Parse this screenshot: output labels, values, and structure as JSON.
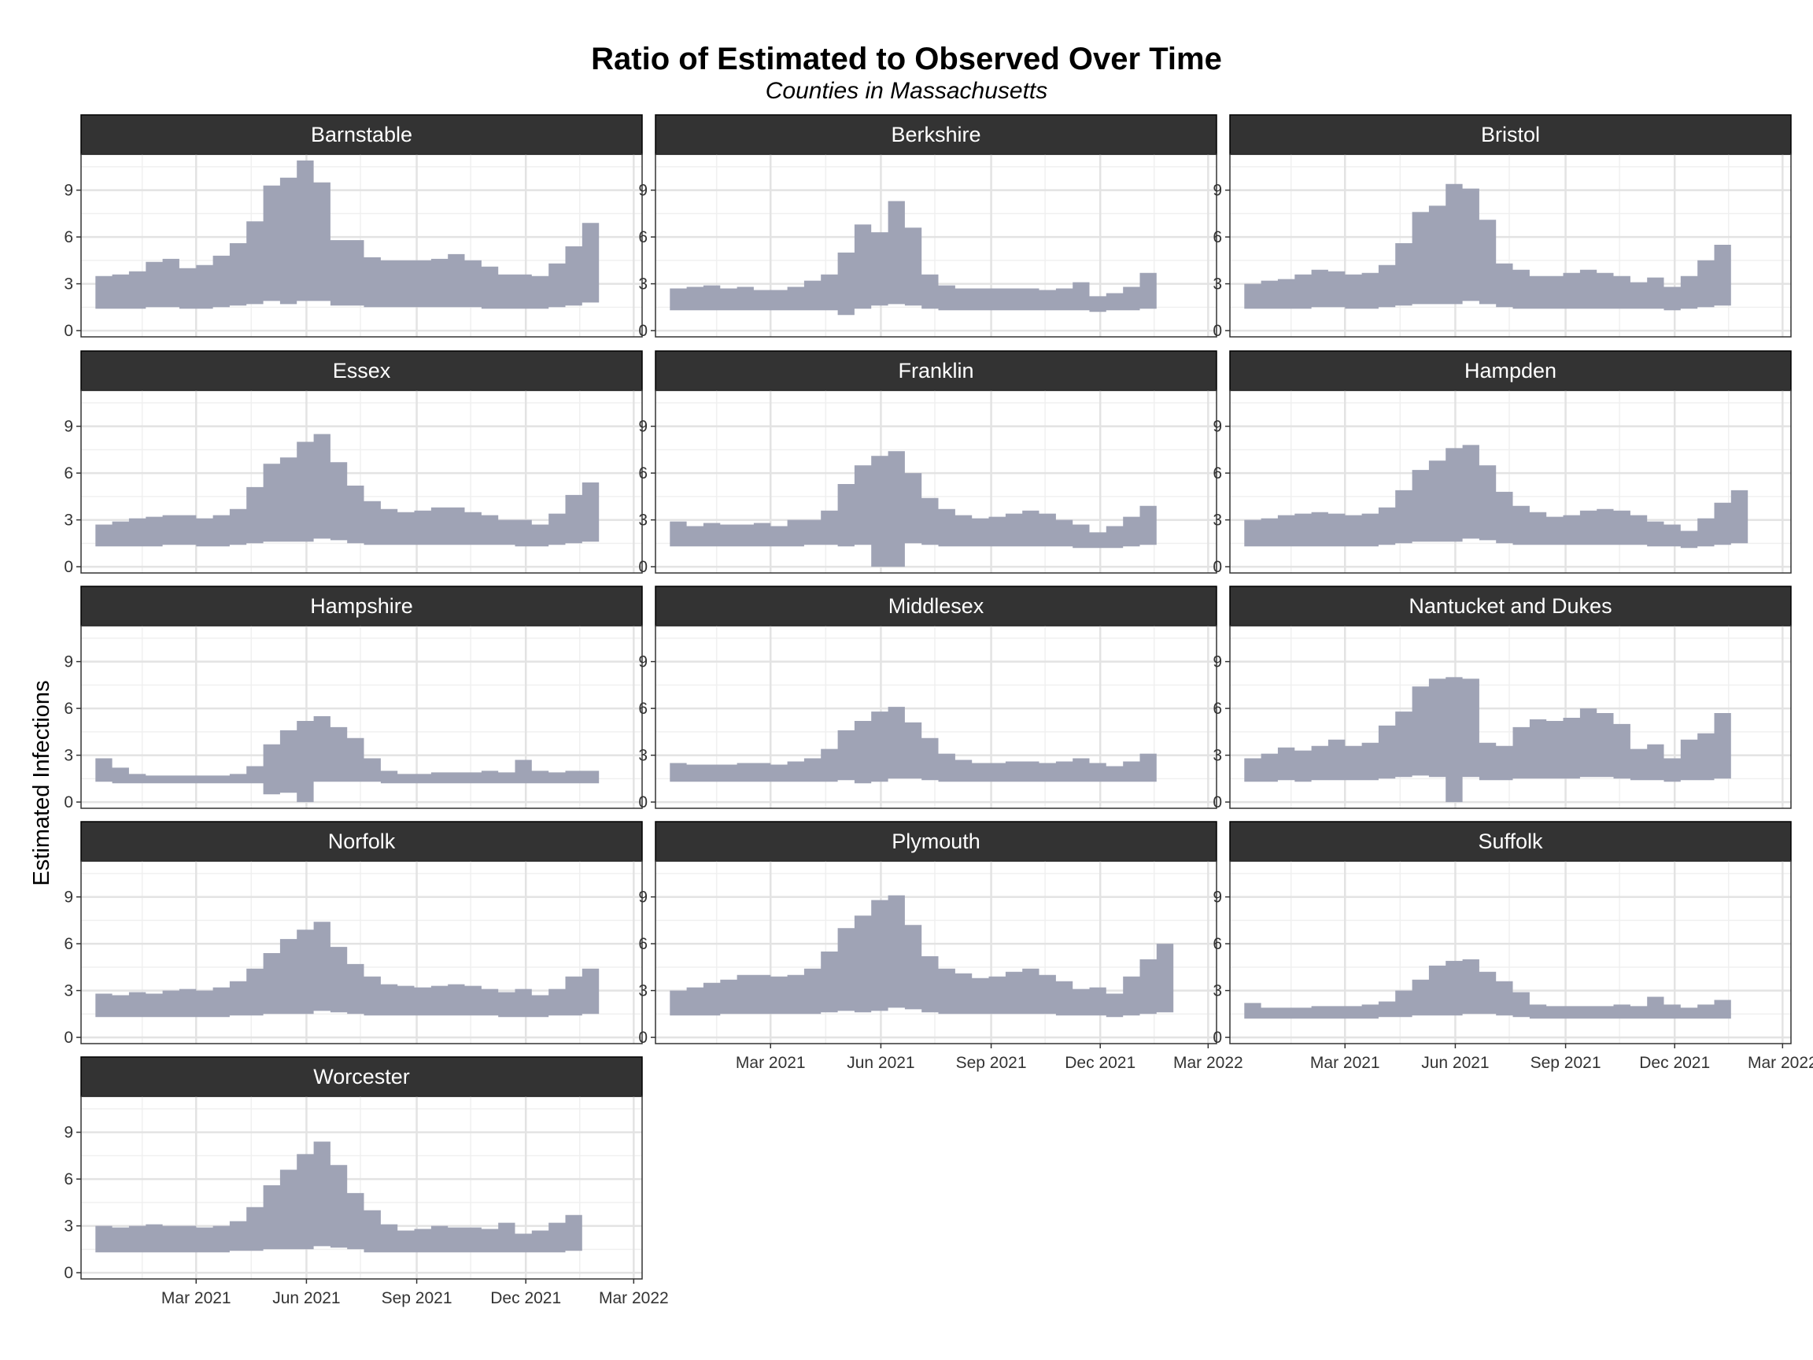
{
  "chart_data": {
    "type": "area",
    "title": "Ratio of Estimated to Observed Over Time",
    "subtitle": "Counties in Massachusetts",
    "xlabel": "",
    "ylabel": "Estimated Infections",
    "x_ticks": [
      "Mar 2021",
      "Jun 2021",
      "Sep 2021",
      "Dec 2021",
      "Mar 2022"
    ],
    "y_ticks": [
      0,
      3,
      6,
      9
    ],
    "ylim": [
      -0.4,
      11.3
    ],
    "xlim": [
      "2020-11-25",
      "2022-03-08"
    ],
    "grid": true,
    "fill_color": "#9fa3b5",
    "strip_color": "#333333",
    "layout": {
      "columns": 3,
      "rows": 5
    },
    "weeks_start": "2020-12-07",
    "week_step_days": 14,
    "panels": [
      {
        "name": "Barnstable",
        "upper": [
          3.5,
          3.6,
          3.8,
          4.4,
          4.6,
          4.0,
          4.2,
          4.8,
          5.6,
          7.0,
          9.3,
          9.8,
          10.9,
          9.5,
          5.8,
          5.8,
          4.7,
          4.5,
          4.5,
          4.5,
          4.6,
          4.9,
          4.5,
          4.1,
          3.6,
          3.6,
          3.5,
          4.3,
          5.4,
          6.9
        ],
        "lower": [
          1.4,
          1.4,
          1.4,
          1.5,
          1.5,
          1.4,
          1.4,
          1.5,
          1.6,
          1.7,
          1.9,
          1.7,
          1.9,
          1.9,
          1.6,
          1.6,
          1.5,
          1.5,
          1.5,
          1.5,
          1.5,
          1.5,
          1.5,
          1.4,
          1.4,
          1.4,
          1.4,
          1.5,
          1.6,
          1.8
        ]
      },
      {
        "name": "Berkshire",
        "upper": [
          2.7,
          2.8,
          2.9,
          2.7,
          2.8,
          2.6,
          2.6,
          2.8,
          3.2,
          3.6,
          5.0,
          6.8,
          6.3,
          8.3,
          6.6,
          3.6,
          2.9,
          2.7,
          2.7,
          2.7,
          2.7,
          2.7,
          2.6,
          2.7,
          3.1,
          2.2,
          2.4,
          2.8,
          3.7
        ],
        "lower": [
          1.3,
          1.3,
          1.3,
          1.3,
          1.3,
          1.3,
          1.3,
          1.3,
          1.3,
          1.3,
          1.0,
          1.4,
          1.6,
          1.7,
          1.6,
          1.4,
          1.3,
          1.3,
          1.3,
          1.3,
          1.3,
          1.3,
          1.3,
          1.3,
          1.3,
          1.2,
          1.3,
          1.3,
          1.4
        ]
      },
      {
        "name": "Bristol",
        "upper": [
          3.0,
          3.2,
          3.3,
          3.6,
          3.9,
          3.8,
          3.6,
          3.7,
          4.2,
          5.6,
          7.6,
          8.0,
          9.4,
          9.1,
          7.1,
          4.3,
          3.9,
          3.5,
          3.5,
          3.7,
          3.9,
          3.7,
          3.5,
          3.1,
          3.4,
          2.8,
          3.5,
          4.5,
          5.5
        ],
        "lower": [
          1.4,
          1.4,
          1.4,
          1.4,
          1.5,
          1.5,
          1.4,
          1.4,
          1.5,
          1.6,
          1.7,
          1.7,
          1.7,
          1.9,
          1.7,
          1.5,
          1.4,
          1.4,
          1.4,
          1.4,
          1.4,
          1.4,
          1.4,
          1.4,
          1.4,
          1.3,
          1.4,
          1.5,
          1.6
        ]
      },
      {
        "name": "Essex",
        "upper": [
          2.7,
          2.9,
          3.1,
          3.2,
          3.3,
          3.3,
          3.1,
          3.3,
          3.7,
          5.1,
          6.6,
          7.0,
          8.0,
          8.5,
          6.7,
          5.2,
          4.2,
          3.7,
          3.5,
          3.6,
          3.8,
          3.8,
          3.5,
          3.3,
          3.0,
          3.0,
          2.7,
          3.4,
          4.6,
          5.4
        ],
        "lower": [
          1.3,
          1.3,
          1.3,
          1.3,
          1.4,
          1.4,
          1.3,
          1.3,
          1.4,
          1.5,
          1.6,
          1.6,
          1.6,
          1.8,
          1.7,
          1.5,
          1.4,
          1.4,
          1.4,
          1.4,
          1.4,
          1.4,
          1.4,
          1.4,
          1.4,
          1.3,
          1.3,
          1.4,
          1.5,
          1.6
        ]
      },
      {
        "name": "Franklin",
        "upper": [
          2.9,
          2.6,
          2.8,
          2.7,
          2.7,
          2.8,
          2.6,
          3.0,
          3.0,
          3.6,
          5.3,
          6.5,
          7.1,
          7.4,
          6.0,
          4.4,
          3.7,
          3.3,
          3.1,
          3.2,
          3.4,
          3.6,
          3.4,
          3.0,
          2.7,
          2.2,
          2.6,
          3.2,
          3.9
        ],
        "lower": [
          1.3,
          1.3,
          1.3,
          1.3,
          1.3,
          1.3,
          1.3,
          1.3,
          1.4,
          1.4,
          1.3,
          1.4,
          0.0,
          0.0,
          1.5,
          1.4,
          1.3,
          1.3,
          1.3,
          1.3,
          1.3,
          1.3,
          1.3,
          1.3,
          1.2,
          1.2,
          1.2,
          1.3,
          1.4
        ]
      },
      {
        "name": "Hampden",
        "upper": [
          3.0,
          3.1,
          3.3,
          3.4,
          3.5,
          3.4,
          3.3,
          3.4,
          3.8,
          4.9,
          6.2,
          6.8,
          7.6,
          7.8,
          6.5,
          4.8,
          3.9,
          3.5,
          3.2,
          3.3,
          3.6,
          3.7,
          3.6,
          3.3,
          2.9,
          2.7,
          2.3,
          3.1,
          4.1,
          4.9
        ],
        "lower": [
          1.3,
          1.3,
          1.3,
          1.3,
          1.3,
          1.3,
          1.3,
          1.3,
          1.4,
          1.5,
          1.6,
          1.6,
          1.6,
          1.8,
          1.7,
          1.5,
          1.4,
          1.4,
          1.4,
          1.4,
          1.4,
          1.4,
          1.4,
          1.4,
          1.3,
          1.3,
          1.2,
          1.3,
          1.4,
          1.5
        ]
      },
      {
        "name": "Hampshire",
        "upper": [
          2.8,
          2.2,
          1.8,
          1.7,
          1.7,
          1.7,
          1.7,
          1.7,
          1.8,
          2.3,
          3.7,
          4.6,
          5.2,
          5.5,
          4.8,
          4.1,
          2.8,
          2.0,
          1.8,
          1.8,
          1.9,
          1.9,
          1.9,
          2.0,
          1.9,
          2.7,
          2.0,
          1.9,
          2.0,
          2.0
        ],
        "lower": [
          1.3,
          1.2,
          1.2,
          1.2,
          1.2,
          1.2,
          1.2,
          1.2,
          1.2,
          1.2,
          0.5,
          0.6,
          0.0,
          1.3,
          1.3,
          1.3,
          1.3,
          1.2,
          1.2,
          1.2,
          1.2,
          1.2,
          1.2,
          1.2,
          1.2,
          1.2,
          1.2,
          1.2,
          1.2,
          1.2
        ]
      },
      {
        "name": "Middlesex",
        "upper": [
          2.5,
          2.4,
          2.4,
          2.4,
          2.5,
          2.5,
          2.4,
          2.6,
          2.8,
          3.4,
          4.6,
          5.2,
          5.8,
          6.1,
          5.1,
          4.1,
          3.1,
          2.7,
          2.5,
          2.5,
          2.6,
          2.6,
          2.5,
          2.6,
          2.8,
          2.5,
          2.3,
          2.6,
          3.1
        ],
        "lower": [
          1.3,
          1.3,
          1.3,
          1.3,
          1.3,
          1.3,
          1.3,
          1.3,
          1.3,
          1.3,
          1.4,
          1.2,
          1.3,
          1.5,
          1.5,
          1.4,
          1.3,
          1.3,
          1.3,
          1.3,
          1.3,
          1.3,
          1.3,
          1.3,
          1.3,
          1.3,
          1.3,
          1.3,
          1.3
        ]
      },
      {
        "name": "Nantucket and Dukes",
        "upper": [
          2.8,
          3.1,
          3.5,
          3.3,
          3.6,
          4.0,
          3.6,
          3.8,
          4.9,
          5.8,
          7.4,
          7.9,
          8.0,
          7.9,
          3.8,
          3.6,
          4.8,
          5.3,
          5.2,
          5.4,
          6.0,
          5.7,
          5.0,
          3.4,
          3.7,
          2.8,
          4.0,
          4.4,
          5.7
        ],
        "lower": [
          1.3,
          1.3,
          1.4,
          1.3,
          1.4,
          1.4,
          1.4,
          1.4,
          1.5,
          1.6,
          1.7,
          1.6,
          0.0,
          1.6,
          1.4,
          1.4,
          1.5,
          1.5,
          1.5,
          1.5,
          1.6,
          1.6,
          1.5,
          1.4,
          1.4,
          1.3,
          1.4,
          1.4,
          1.5
        ]
      },
      {
        "name": "Norfolk",
        "upper": [
          2.8,
          2.7,
          2.9,
          2.8,
          3.0,
          3.1,
          3.0,
          3.2,
          3.6,
          4.4,
          5.4,
          6.3,
          6.9,
          7.4,
          5.8,
          4.7,
          3.9,
          3.4,
          3.3,
          3.2,
          3.3,
          3.4,
          3.3,
          3.1,
          2.9,
          3.1,
          2.7,
          3.1,
          3.9,
          4.4
        ],
        "lower": [
          1.3,
          1.3,
          1.3,
          1.3,
          1.3,
          1.3,
          1.3,
          1.3,
          1.4,
          1.4,
          1.5,
          1.5,
          1.5,
          1.7,
          1.6,
          1.5,
          1.4,
          1.4,
          1.4,
          1.4,
          1.4,
          1.4,
          1.4,
          1.4,
          1.3,
          1.3,
          1.3,
          1.4,
          1.4,
          1.5
        ]
      },
      {
        "name": "Plymouth",
        "upper": [
          3.0,
          3.2,
          3.5,
          3.7,
          4.0,
          4.0,
          3.9,
          4.0,
          4.4,
          5.5,
          7.0,
          7.8,
          8.8,
          9.1,
          7.2,
          5.2,
          4.4,
          4.1,
          3.8,
          3.9,
          4.2,
          4.4,
          4.0,
          3.6,
          3.1,
          3.2,
          2.8,
          3.9,
          5.0,
          6.0
        ],
        "lower": [
          1.4,
          1.4,
          1.4,
          1.5,
          1.5,
          1.5,
          1.5,
          1.5,
          1.5,
          1.6,
          1.7,
          1.6,
          1.7,
          1.9,
          1.8,
          1.6,
          1.5,
          1.5,
          1.5,
          1.5,
          1.5,
          1.5,
          1.5,
          1.4,
          1.4,
          1.4,
          1.3,
          1.4,
          1.5,
          1.6
        ]
      },
      {
        "name": "Suffolk",
        "upper": [
          2.2,
          1.9,
          1.9,
          1.9,
          2.0,
          2.0,
          2.0,
          2.1,
          2.3,
          3.0,
          3.7,
          4.6,
          4.9,
          5.0,
          4.2,
          3.6,
          2.9,
          2.1,
          2.0,
          2.0,
          2.0,
          2.0,
          2.1,
          2.0,
          2.6,
          2.1,
          1.9,
          2.1,
          2.4
        ],
        "lower": [
          1.2,
          1.2,
          1.2,
          1.2,
          1.2,
          1.2,
          1.2,
          1.2,
          1.3,
          1.3,
          1.4,
          1.4,
          1.4,
          1.5,
          1.5,
          1.4,
          1.3,
          1.2,
          1.2,
          1.2,
          1.2,
          1.2,
          1.2,
          1.2,
          1.2,
          1.2,
          1.2,
          1.2,
          1.2
        ]
      },
      {
        "name": "Worcester",
        "upper": [
          3.0,
          2.9,
          3.0,
          3.1,
          3.0,
          3.0,
          2.9,
          3.0,
          3.3,
          4.2,
          5.6,
          6.6,
          7.6,
          8.4,
          6.9,
          5.1,
          4.0,
          3.1,
          2.7,
          2.8,
          3.0,
          2.9,
          2.9,
          2.8,
          3.2,
          2.5,
          2.7,
          3.2,
          3.7
        ],
        "lower": [
          1.3,
          1.3,
          1.3,
          1.3,
          1.3,
          1.3,
          1.3,
          1.3,
          1.4,
          1.4,
          1.5,
          1.5,
          1.5,
          1.7,
          1.6,
          1.5,
          1.3,
          1.3,
          1.3,
          1.3,
          1.3,
          1.3,
          1.3,
          1.3,
          1.3,
          1.3,
          1.3,
          1.3,
          1.4
        ]
      }
    ]
  }
}
